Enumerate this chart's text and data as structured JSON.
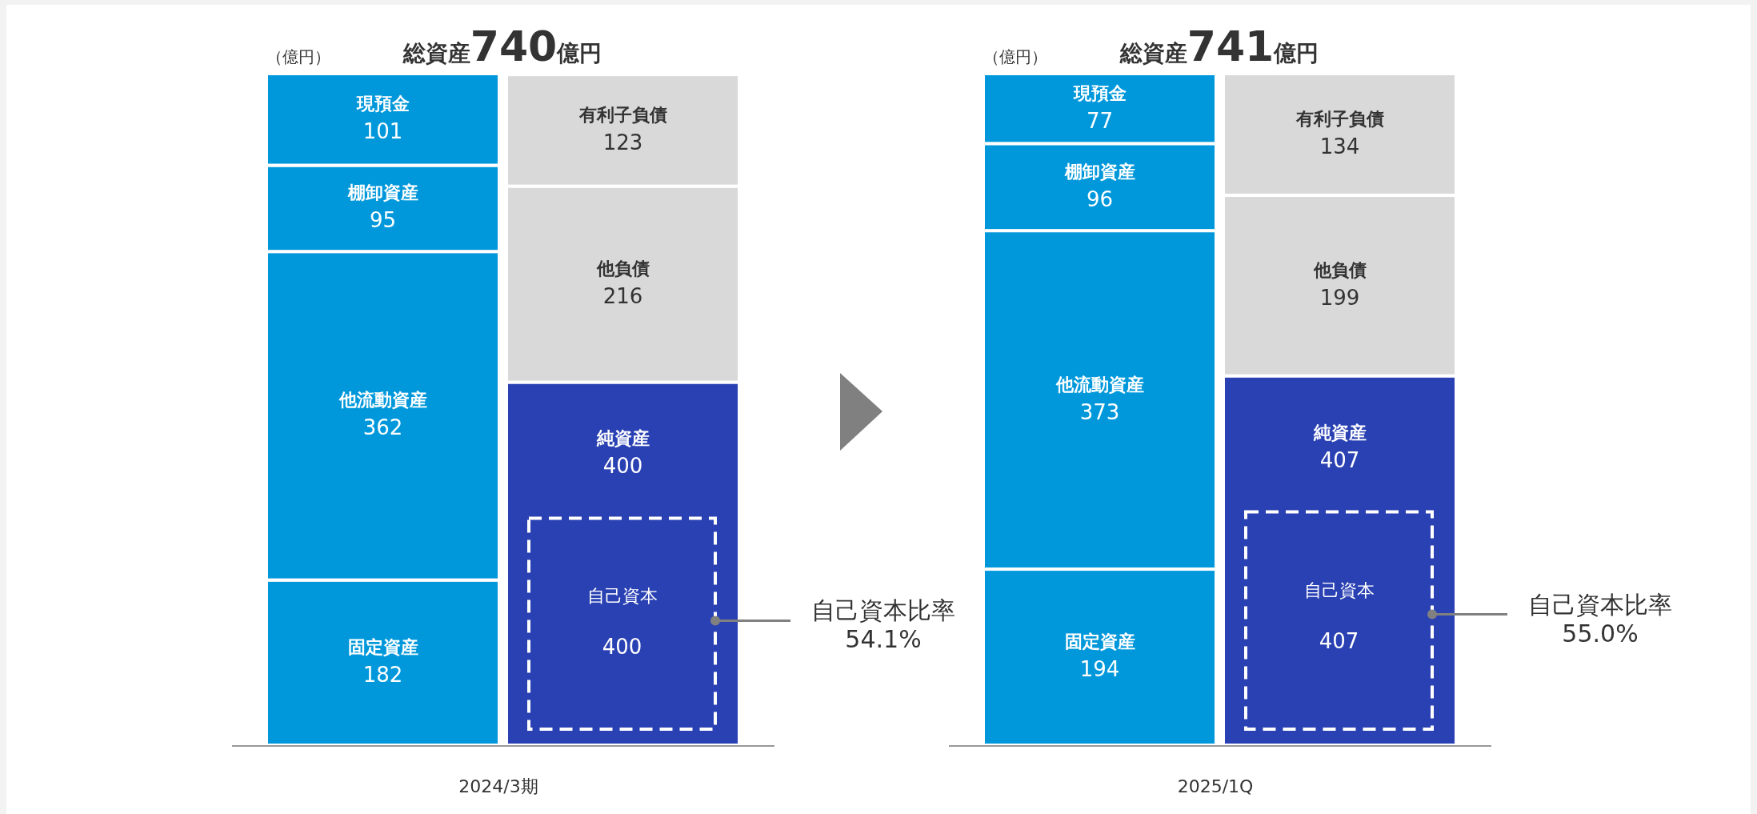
{
  "chart_data": [
    {
      "type": "bar",
      "stacked": true,
      "title": "総資産740億円",
      "ylabel": "（億円）",
      "xlabel": "2024/3期",
      "categories": [
        null,
        null
      ],
      "data_labels": true,
      "series": [
        {
          "name": "固定資産",
          "color": "#0098db",
          "values": [
            182,
            null
          ]
        },
        {
          "name": "他流動資産",
          "color": "#0098db",
          "values": [
            362,
            null
          ]
        },
        {
          "name": "棚卸資産",
          "color": "#0098db",
          "values": [
            95,
            null
          ]
        },
        {
          "name": "現預金",
          "color": "#0098db",
          "values": [
            101,
            null
          ]
        },
        {
          "name": "純資産",
          "color": "#2a41b3",
          "values": [
            null,
            400
          ]
        },
        {
          "name": "他負債",
          "color": "#d9d9d9",
          "values": [
            null,
            216
          ]
        },
        {
          "name": "有利子負債",
          "color": "#d9d9d9",
          "values": [
            null,
            123
          ]
        }
      ],
      "annotations": [
        "自己資本",
        "400",
        "自己資本比率\n54.1%"
      ]
    },
    {
      "type": "bar",
      "stacked": true,
      "title": "総資産741億円",
      "ylabel": "（億円）",
      "xlabel": "2025/1Q",
      "categories": [
        null,
        null
      ],
      "data_labels": true,
      "series": [
        {
          "name": "固定資産",
          "color": "#0098db",
          "values": [
            194,
            null
          ]
        },
        {
          "name": "他流動資産",
          "color": "#0098db",
          "values": [
            373,
            null
          ]
        },
        {
          "name": "棚卸資産",
          "color": "#0098db",
          "values": [
            96,
            null
          ]
        },
        {
          "name": "現預金",
          "color": "#0098db",
          "values": [
            77,
            null
          ]
        },
        {
          "name": "純資産",
          "color": "#2a41b3",
          "values": [
            null,
            407
          ]
        },
        {
          "name": "他負債",
          "color": "#d9d9d9",
          "values": [
            null,
            199
          ]
        },
        {
          "name": "有利子負債",
          "color": "#d9d9d9",
          "values": [
            null,
            134
          ]
        }
      ],
      "annotations": [
        "自己資本",
        "407",
        "自己資本比率\n55.0%"
      ]
    }
  ]
}
